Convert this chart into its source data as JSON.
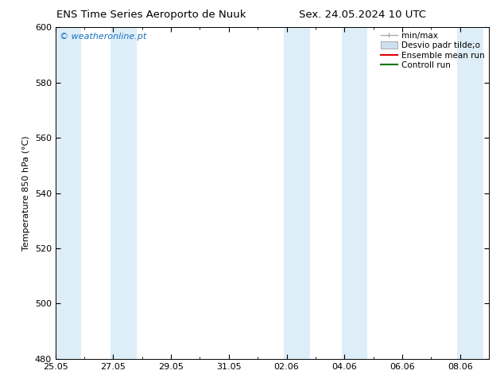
{
  "title_left": "ENS Time Series Aeroporto de Nuuk",
  "title_right": "Sex. 24.05.2024 10 UTC",
  "ylabel": "Temperature 850 hPa (°C)",
  "watermark": "© weatheronline.pt",
  "watermark_color": "#1a6fbd",
  "ylim": [
    480,
    600
  ],
  "yticks": [
    480,
    500,
    520,
    540,
    560,
    580,
    600
  ],
  "bg_color": "#ffffff",
  "plot_bg_color": "#ffffff",
  "band_color": "#ddeef8",
  "total_days": 15,
  "xtick_labels": [
    "25.05",
    "27.05",
    "29.05",
    "31.05",
    "02.06",
    "04.06",
    "06.06",
    "08.06"
  ],
  "xtick_positions_days": [
    0,
    2,
    4,
    6,
    8,
    10,
    12,
    14
  ],
  "shaded_bands": [
    {
      "start_day": 0.0,
      "end_day": 0.9
    },
    {
      "start_day": 1.9,
      "end_day": 2.8
    },
    {
      "start_day": 7.9,
      "end_day": 8.8
    },
    {
      "start_day": 9.9,
      "end_day": 10.8
    },
    {
      "start_day": 13.9,
      "end_day": 14.82
    }
  ],
  "legend_minmax_color": "#aaaaaa",
  "legend_desvio_facecolor": "#cce0f0",
  "legend_desvio_edgecolor": "#aaaaaa",
  "legend_ens_color": "#dd0000",
  "legend_ctrl_color": "#007700",
  "title_fontsize": 9.5,
  "ylabel_fontsize": 8,
  "tick_fontsize": 8,
  "watermark_fontsize": 8,
  "legend_fontsize": 7.5
}
